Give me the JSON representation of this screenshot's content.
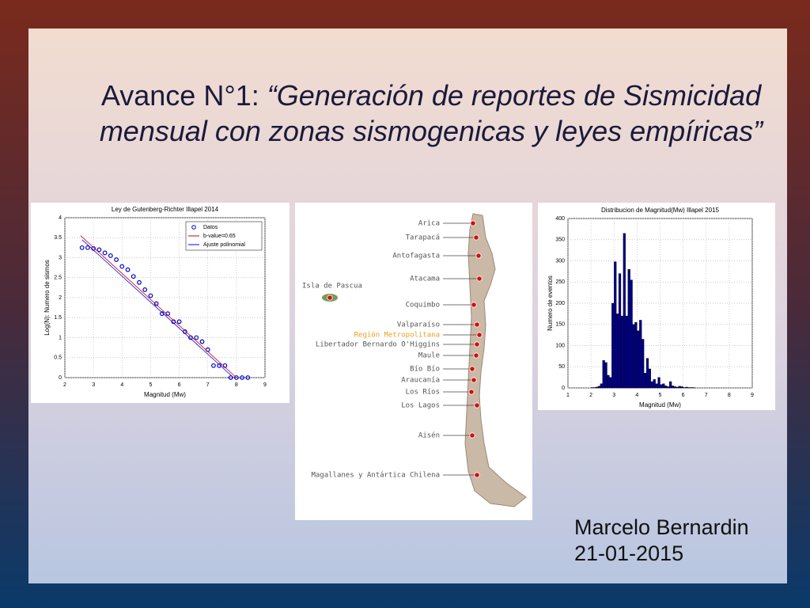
{
  "title": {
    "plain": "Avance N°1:",
    "italic": "“Generación de reportes de Sismicidad mensual con zonas sismogenicas y leyes empíricas”"
  },
  "author": "Marcelo Bernardin",
  "date": "21-01-2015",
  "chart_data": [
    {
      "type": "scatter",
      "title": "Ley de Gutenberg-Richter Illapel 2014",
      "x_label": "Magnitud (Mw)",
      "y_label": "Log(N): Numero de sismos",
      "xlim": [
        2,
        9
      ],
      "ylim": [
        0,
        4
      ],
      "xticks": [
        2,
        3,
        4,
        5,
        6,
        7,
        8,
        9
      ],
      "yticks": [
        0,
        0.5,
        1,
        1.5,
        2,
        2.5,
        3,
        3.5,
        4
      ],
      "grid": true,
      "legend": "upper right",
      "series": [
        {
          "name": "Datos",
          "color": "#0000cc",
          "mode": "markers",
          "x": [
            2.6,
            2.8,
            3.0,
            3.2,
            3.4,
            3.6,
            3.8,
            4.0,
            4.2,
            4.4,
            4.6,
            4.8,
            5.0,
            5.2,
            5.4,
            5.6,
            5.8,
            6.0,
            6.2,
            6.4,
            6.6,
            6.8,
            7.0,
            7.2,
            7.4,
            7.6,
            7.8,
            8.0,
            8.2,
            8.4
          ],
          "values": [
            3.25,
            3.25,
            3.23,
            3.2,
            3.12,
            3.05,
            2.95,
            2.78,
            2.7,
            2.53,
            2.38,
            2.2,
            2.05,
            1.85,
            1.6,
            1.6,
            1.4,
            1.4,
            1.15,
            1.0,
            1.0,
            0.9,
            0.7,
            0.3,
            0.3,
            0.3,
            0,
            0,
            0,
            0
          ]
        },
        {
          "name": "b-value=0.65",
          "color": "#cc0000",
          "mode": "line",
          "x": [
            2.55,
            8.0
          ],
          "values": [
            3.55,
            0
          ]
        },
        {
          "name": "Ajuste polinomial",
          "color": "#0000ff",
          "mode": "line",
          "x": [
            2.6,
            7.9
          ],
          "values": [
            3.45,
            0
          ]
        }
      ]
    },
    {
      "type": "histogram",
      "title": "Distribucion de Magnitud(Mw) Illapel 2015",
      "x_label": "Magnitud (Mw)",
      "y_label": "Numero de eventos",
      "xlim": [
        1,
        9
      ],
      "ylim": [
        0,
        400
      ],
      "xticks": [
        1,
        2,
        3,
        4,
        5,
        6,
        7,
        8,
        9
      ],
      "yticks": [
        0,
        50,
        100,
        150,
        200,
        250,
        300,
        350,
        400
      ],
      "grid": true,
      "color": "#000080",
      "bins": [
        2.0,
        2.1,
        2.2,
        2.3,
        2.4,
        2.5,
        2.6,
        2.7,
        2.8,
        2.9,
        3.0,
        3.1,
        3.2,
        3.3,
        3.4,
        3.5,
        3.6,
        3.7,
        3.8,
        3.9,
        4.0,
        4.1,
        4.2,
        4.3,
        4.4,
        4.5,
        4.6,
        4.7,
        4.8,
        4.9,
        5.0,
        5.1,
        5.2,
        5.3,
        5.4,
        5.5,
        5.6,
        5.7,
        5.8,
        5.9,
        6.0,
        6.1,
        6.2,
        6.3,
        6.4,
        6.5
      ],
      "values": [
        1,
        1,
        2,
        4,
        10,
        65,
        60,
        30,
        25,
        200,
        298,
        175,
        270,
        170,
        365,
        170,
        280,
        255,
        150,
        155,
        135,
        160,
        115,
        35,
        70,
        45,
        15,
        20,
        10,
        25,
        8,
        10,
        5,
        3,
        15,
        5,
        3,
        2,
        4,
        3,
        1,
        2,
        1,
        1,
        1
      ]
    }
  ],
  "map": {
    "labels": [
      "Arica",
      "Tarapacá",
      "Antofagasta",
      "Atacama",
      "Coquimbo",
      "Valparaíso",
      "Región Metropolitana",
      "Libertador Bernardo O'Higgins",
      "Maule",
      "Bío Bío",
      "Araucanía",
      "Los Ríos",
      "Los Lagos",
      "Aisén",
      "Magallanes y Antártica Chilena",
      "Isla de Pascua"
    ]
  }
}
